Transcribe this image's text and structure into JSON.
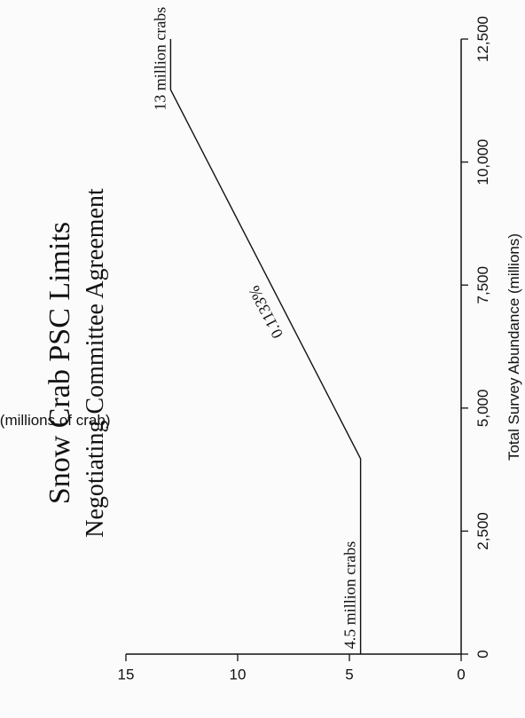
{
  "chart_data": {
    "type": "line",
    "title": "Snow Crab PSC Limits",
    "subtitle": "Negotiating Committee Agreement",
    "xlabel": "Total Survey Abundance (millions)",
    "ylabel": "PSC Limit (millions of crab)",
    "xlim": [
      0,
      12500
    ],
    "ylim": [
      0,
      15
    ],
    "x_ticks": [
      "0",
      "2,500",
      "5,000",
      "7,500",
      "10,000",
      "12,500"
    ],
    "x_tick_values": [
      0,
      2500,
      5000,
      7500,
      10000,
      12500
    ],
    "y_ticks": [
      "0",
      "5",
      "10",
      "15"
    ],
    "y_tick_values": [
      0,
      5,
      10,
      15
    ],
    "series": [
      {
        "x": [
          0,
          3970,
          11470,
          12500
        ],
        "y": [
          4.5,
          4.5,
          13,
          13
        ]
      }
    ],
    "annotations": [
      {
        "text": "4.5 million crabs",
        "x": 1200,
        "y": 4.5
      },
      {
        "text": "13 million crabs",
        "x": 12100,
        "y": 13
      },
      {
        "text": "0.1133%",
        "x": 7000,
        "y": 8.3
      }
    ],
    "grid": false
  }
}
